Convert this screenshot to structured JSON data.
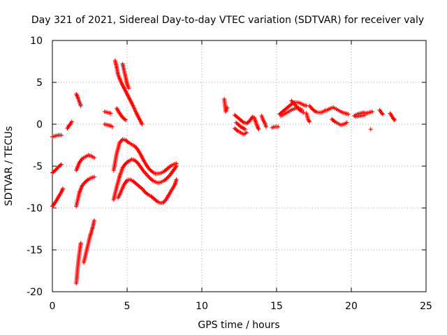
{
  "chart_data": {
    "type": "scatter",
    "title": "Day 321 of 2021, Sidereal Day-to-day VTEC variation (SDTVAR) for receiver valy",
    "xlabel": "GPS time / hours",
    "ylabel": "SDTVAR / TECUs",
    "xlim": [
      0,
      25
    ],
    "ylim": [
      -20,
      10
    ],
    "xticks": [
      0,
      5,
      10,
      15,
      20,
      25
    ],
    "yticks": [
      -20,
      -15,
      -10,
      -5,
      0,
      5,
      10
    ],
    "xtick_labels": [
      "0",
      "5",
      "10",
      "15",
      "20",
      "25"
    ],
    "ytick_labels": [
      "-20",
      "-15",
      "-10",
      "-5",
      "0",
      "5",
      "10"
    ],
    "grid": true,
    "marker": "plus",
    "color": "#ff0000",
    "series": [
      {
        "segments": [
          [
            [
              0.0,
              -1.5
            ],
            [
              0.2,
              -1.4
            ],
            [
              0.4,
              -1.3
            ],
            [
              0.6,
              -1.3
            ]
          ],
          [
            [
              0.0,
              -5.8
            ],
            [
              0.2,
              -5.5
            ],
            [
              0.4,
              -5.1
            ],
            [
              0.6,
              -4.8
            ]
          ],
          [
            [
              0.0,
              -9.8
            ],
            [
              0.2,
              -9.3
            ],
            [
              0.4,
              -8.7
            ],
            [
              0.6,
              -8.1
            ],
            [
              0.7,
              -7.7
            ]
          ],
          [
            [
              1.0,
              -0.5
            ],
            [
              1.1,
              -0.2
            ],
            [
              1.2,
              0.0
            ],
            [
              1.3,
              0.3
            ]
          ],
          [
            [
              1.6,
              3.6
            ],
            [
              1.7,
              3.2
            ],
            [
              1.8,
              2.7
            ],
            [
              1.9,
              2.2
            ]
          ],
          [
            [
              1.6,
              -9.8
            ],
            [
              1.7,
              -9.0
            ],
            [
              1.8,
              -8.2
            ],
            [
              2.0,
              -7.3
            ],
            [
              2.2,
              -6.9
            ],
            [
              2.4,
              -6.6
            ],
            [
              2.6,
              -6.4
            ],
            [
              2.8,
              -6.3
            ]
          ],
          [
            [
              1.6,
              -5.5
            ],
            [
              1.8,
              -4.6
            ],
            [
              2.0,
              -4.1
            ],
            [
              2.2,
              -3.9
            ],
            [
              2.4,
              -3.7
            ],
            [
              2.6,
              -3.8
            ],
            [
              2.8,
              -4.0
            ]
          ],
          [
            [
              1.6,
              -19.0
            ],
            [
              1.7,
              -17.0
            ],
            [
              1.8,
              -15.5
            ],
            [
              1.9,
              -14.2
            ]
          ],
          [
            [
              2.1,
              -16.5
            ],
            [
              2.3,
              -15.0
            ],
            [
              2.5,
              -13.5
            ],
            [
              2.7,
              -12.3
            ],
            [
              2.8,
              -11.5
            ]
          ],
          [
            [
              3.5,
              1.5
            ],
            [
              3.7,
              1.4
            ],
            [
              3.9,
              1.3
            ]
          ],
          [
            [
              3.5,
              0.0
            ],
            [
              3.7,
              -0.1
            ],
            [
              3.9,
              -0.2
            ],
            [
              4.0,
              -0.3
            ]
          ],
          [
            [
              4.1,
              -5.5
            ],
            [
              4.3,
              -3.5
            ],
            [
              4.5,
              -2.2
            ],
            [
              4.7,
              -1.8
            ],
            [
              4.9,
              -1.9
            ],
            [
              5.1,
              -2.2
            ],
            [
              5.3,
              -2.4
            ],
            [
              5.5,
              -2.6
            ],
            [
              5.7,
              -3.0
            ],
            [
              5.9,
              -3.6
            ],
            [
              6.1,
              -4.3
            ],
            [
              6.3,
              -4.9
            ],
            [
              6.5,
              -5.4
            ],
            [
              6.7,
              -5.7
            ],
            [
              6.9,
              -5.9
            ],
            [
              7.1,
              -5.9
            ],
            [
              7.3,
              -5.8
            ],
            [
              7.5,
              -5.6
            ],
            [
              7.7,
              -5.3
            ],
            [
              7.9,
              -5.0
            ],
            [
              8.1,
              -4.8
            ],
            [
              8.3,
              -4.7
            ]
          ],
          [
            [
              4.1,
              -9.0
            ],
            [
              4.3,
              -7.5
            ],
            [
              4.5,
              -6.2
            ],
            [
              4.7,
              -5.2
            ],
            [
              4.9,
              -4.7
            ],
            [
              5.1,
              -4.4
            ],
            [
              5.3,
              -4.2
            ],
            [
              5.5,
              -4.3
            ],
            [
              5.7,
              -4.6
            ],
            [
              5.9,
              -5.1
            ],
            [
              6.1,
              -5.6
            ],
            [
              6.3,
              -6.0
            ],
            [
              6.5,
              -6.4
            ],
            [
              6.7,
              -6.7
            ],
            [
              6.9,
              -6.9
            ],
            [
              7.1,
              -7.0
            ],
            [
              7.3,
              -6.9
            ],
            [
              7.5,
              -6.7
            ],
            [
              7.7,
              -6.4
            ],
            [
              7.9,
              -6.0
            ],
            [
              8.1,
              -5.5
            ],
            [
              8.3,
              -5.0
            ]
          ],
          [
            [
              4.3,
              1.9
            ],
            [
              4.5,
              1.3
            ],
            [
              4.7,
              0.8
            ],
            [
              4.9,
              0.5
            ]
          ],
          [
            [
              4.4,
              -8.8
            ],
            [
              4.6,
              -8.0
            ],
            [
              4.8,
              -7.2
            ],
            [
              5.0,
              -6.7
            ],
            [
              5.2,
              -6.6
            ],
            [
              5.4,
              -6.8
            ],
            [
              5.6,
              -7.1
            ],
            [
              5.8,
              -7.4
            ],
            [
              6.0,
              -7.7
            ],
            [
              6.2,
              -8.1
            ],
            [
              6.4,
              -8.4
            ],
            [
              6.6,
              -8.6
            ],
            [
              6.8,
              -8.9
            ],
            [
              7.0,
              -9.2
            ],
            [
              7.2,
              -9.4
            ],
            [
              7.4,
              -9.4
            ],
            [
              7.6,
              -9.0
            ],
            [
              7.8,
              -8.4
            ],
            [
              8.0,
              -7.8
            ],
            [
              8.2,
              -7.2
            ],
            [
              8.3,
              -6.6
            ]
          ],
          [
            [
              4.2,
              7.6
            ],
            [
              4.3,
              6.8
            ],
            [
              4.4,
              5.9
            ],
            [
              4.6,
              5.0
            ],
            [
              4.8,
              4.3
            ],
            [
              5.0,
              3.6
            ],
            [
              5.2,
              2.9
            ],
            [
              5.4,
              2.2
            ],
            [
              5.6,
              1.4
            ],
            [
              5.8,
              0.7
            ],
            [
              6.0,
              0.0
            ]
          ],
          [
            [
              4.7,
              7.2
            ],
            [
              4.8,
              6.4
            ],
            [
              4.9,
              5.6
            ],
            [
              5.0,
              4.8
            ],
            [
              5.1,
              4.3
            ]
          ],
          [
            [
              11.5,
              3.0
            ],
            [
              11.6,
              1.5
            ],
            [
              11.7,
              2.0
            ]
          ],
          [
            [
              12.2,
              1.1
            ],
            [
              12.4,
              0.8
            ],
            [
              12.6,
              0.5
            ],
            [
              12.8,
              0.2
            ],
            [
              13.0,
              0.1
            ],
            [
              13.2,
              0.4
            ],
            [
              13.4,
              0.9
            ]
          ],
          [
            [
              12.2,
              -0.5
            ],
            [
              12.4,
              -0.8
            ],
            [
              12.6,
              -1.0
            ],
            [
              12.8,
              -1.2
            ],
            [
              13.0,
              -1.0
            ]
          ],
          [
            [
              12.3,
              0.2
            ],
            [
              12.6,
              -0.3
            ],
            [
              12.9,
              -0.6
            ]
          ],
          [
            [
              13.5,
              0.8
            ],
            [
              13.6,
              0.3
            ],
            [
              13.7,
              -0.2
            ],
            [
              13.8,
              -0.6
            ]
          ],
          [
            [
              14.0,
              1.0
            ],
            [
              14.1,
              0.5
            ],
            [
              14.2,
              0.2
            ],
            [
              14.3,
              -0.3
            ]
          ],
          [
            [
              14.7,
              -0.4
            ],
            [
              14.9,
              -0.3
            ],
            [
              15.1,
              -0.3
            ]
          ],
          [
            [
              15.2,
              1.2
            ],
            [
              15.4,
              1.5
            ],
            [
              15.6,
              1.8
            ],
            [
              15.8,
              2.1
            ],
            [
              16.0,
              2.4
            ],
            [
              16.2,
              2.6
            ],
            [
              16.4,
              2.6
            ],
            [
              16.6,
              2.5
            ],
            [
              16.8,
              2.3
            ],
            [
              17.0,
              2.2
            ]
          ],
          [
            [
              15.3,
              1.0
            ],
            [
              15.5,
              1.2
            ],
            [
              15.7,
              1.4
            ],
            [
              15.9,
              1.6
            ],
            [
              16.1,
              1.8
            ],
            [
              16.3,
              1.9
            ],
            [
              16.5,
              1.9
            ],
            [
              16.7,
              1.7
            ]
          ],
          [
            [
              16.0,
              2.8
            ],
            [
              16.2,
              2.4
            ],
            [
              16.4,
              2.0
            ],
            [
              16.6,
              1.6
            ],
            [
              16.8,
              1.4
            ]
          ],
          [
            [
              17.2,
              2.2
            ],
            [
              17.4,
              1.8
            ],
            [
              17.6,
              1.5
            ],
            [
              17.8,
              1.4
            ],
            [
              18.0,
              1.4
            ],
            [
              18.2,
              1.6
            ],
            [
              18.4,
              1.7
            ],
            [
              18.6,
              1.9
            ],
            [
              18.8,
              2.0
            ],
            [
              19.0,
              1.8
            ],
            [
              19.2,
              1.6
            ],
            [
              19.4,
              1.4
            ],
            [
              19.6,
              1.3
            ],
            [
              19.8,
              1.2
            ]
          ],
          [
            [
              17.0,
              1.3
            ],
            [
              17.1,
              0.6
            ],
            [
              17.2,
              0.3
            ]
          ],
          [
            [
              18.7,
              0.6
            ],
            [
              18.9,
              0.3
            ],
            [
              19.1,
              0.1
            ],
            [
              19.3,
              -0.1
            ],
            [
              19.5,
              0.0
            ],
            [
              19.7,
              0.2
            ]
          ],
          [
            [
              20.2,
              1.0
            ],
            [
              20.4,
              1.2
            ],
            [
              20.6,
              1.3
            ],
            [
              20.8,
              1.4
            ],
            [
              21.0,
              1.3
            ],
            [
              21.2,
              1.4
            ],
            [
              21.4,
              1.5
            ]
          ],
          [
            [
              20.3,
              0.9
            ],
            [
              20.6,
              1.0
            ],
            [
              20.9,
              1.1
            ]
          ],
          [
            [
              21.3,
              -0.6
            ]
          ],
          [
            [
              21.9,
              1.7
            ],
            [
              22.0,
              1.4
            ],
            [
              22.1,
              1.2
            ]
          ],
          [
            [
              22.6,
              1.3
            ],
            [
              22.7,
              1.0
            ],
            [
              22.8,
              0.7
            ],
            [
              22.9,
              0.5
            ]
          ]
        ]
      }
    ]
  }
}
